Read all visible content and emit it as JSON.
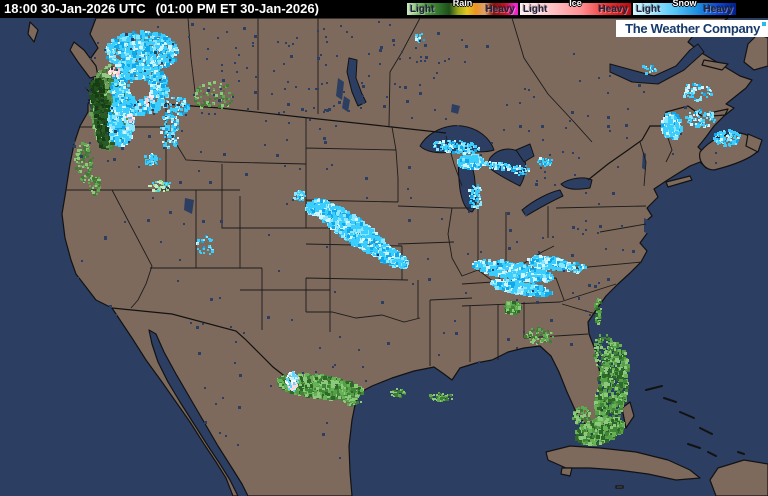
{
  "header": {
    "timestamp_utc": "18:00 30-Jan-2026 UTC",
    "timestamp_local": "(01:00 PM ET 30-Jan-2026)"
  },
  "legend": {
    "groups": [
      {
        "name": "Rain",
        "light": "Light",
        "heavy": "Heavy",
        "stops": [
          "#cfe8c4 0%",
          "#8fc97e 8%",
          "#4f9a42 18%",
          "#2f6f29 30%",
          "#1d4f1a 38%",
          "#9aa71c 46%",
          "#e3c81e 54%",
          "#ee9221 62%",
          "#d9a26b 70%",
          "#8c1010 78%",
          "#c41425 88%",
          "#ee28c8 97%",
          "#f01fd4 100%"
        ]
      },
      {
        "name": "Ice",
        "light": "Light",
        "heavy": "Heavy",
        "stops": [
          "#ffeef0 0%",
          "#ffc9cc 25%",
          "#ff8f93 55%",
          "#e83030 80%",
          "#b80b10 100%"
        ]
      },
      {
        "name": "Snow",
        "light": "Light",
        "heavy": "Heavy",
        "stops": [
          "#d8f6ff 0%",
          "#9fe7ff 18%",
          "#55c8f7 40%",
          "#1e8fe0 62%",
          "#1048d0 82%",
          "#001f8f 100%"
        ]
      }
    ]
  },
  "branding": {
    "name": "The Weather Company",
    "text_color": "#163a6b",
    "trademark_color": "#2bb9e8",
    "background": "#ffffff"
  },
  "map": {
    "colors": {
      "ocean": "#2d3e63",
      "land": "#7d6a5c",
      "coastline": "#121212",
      "state_border": "#1c1c1c",
      "bar_background": "#000000"
    },
    "palettes": {
      "snow": [
        "#3bcdfb",
        "#3bcdfb",
        "#3bcdfb",
        "#8ae6ff",
        "#12a7e8",
        "#d2f4ff"
      ],
      "rainNW": [
        "#47853c",
        "#3a7231",
        "#578f47",
        "#2a5a25",
        "#96c985",
        "#6ca05c"
      ],
      "rainDark": [
        "#1f4d1b",
        "#163d13",
        "#2a5a25"
      ],
      "rain": [
        "#55a047",
        "#67b156",
        "#418539",
        "#8cc97b",
        "#2e6828"
      ],
      "rainSparse": [
        "#5fa852",
        "#8cc97b",
        "#3f7d37"
      ],
      "ice": [
        "#ffd2d2",
        "#ffecec",
        "#f2b8c6"
      ],
      "iceMix": [
        "#ffffff",
        "#c8f1ff",
        "#5fd7ff",
        "#ffd9db"
      ],
      "mixGreen": [
        "#3bcdfb",
        "#8fe08b",
        "#c7ecc2"
      ],
      "noise": [
        "#2d3e63"
      ]
    },
    "radar_cells": [
      [
        110,
        107,
        19,
        42,
        0,
        760,
        3,
        "rainNW",
        0
      ],
      [
        103,
        122,
        8,
        26,
        0,
        200,
        3,
        "rainDark",
        0
      ],
      [
        97,
        92,
        7,
        14,
        0,
        90,
        3,
        "rainDark",
        0
      ],
      [
        84,
        163,
        9,
        20,
        0,
        90,
        2,
        "rainSparse",
        0
      ],
      [
        94,
        185,
        7,
        10,
        0,
        40,
        2,
        "rainSparse",
        0
      ],
      [
        214,
        96,
        20,
        15,
        0,
        70,
        2,
        "rainSparse",
        0
      ],
      [
        142,
        52,
        36,
        20,
        0,
        620,
        3,
        "snow",
        0
      ],
      [
        140,
        89,
        29,
        26,
        0,
        560,
        3,
        "snow",
        0.4
      ],
      [
        121,
        122,
        13,
        24,
        0,
        300,
        3,
        "snow",
        0
      ],
      [
        170,
        130,
        9,
        20,
        0,
        110,
        2,
        "snow",
        0
      ],
      [
        177,
        106,
        13,
        9,
        0,
        70,
        2,
        "snow",
        0
      ],
      [
        152,
        160,
        8,
        6,
        0,
        40,
        2,
        "snow",
        0
      ],
      [
        114,
        72,
        6,
        6,
        0,
        22,
        2,
        "ice",
        0
      ],
      [
        149,
        100,
        5,
        5,
        0,
        16,
        2,
        "ice",
        0
      ],
      [
        130,
        118,
        4,
        4,
        0,
        12,
        2,
        "ice",
        0
      ],
      [
        160,
        186,
        11,
        6,
        0,
        40,
        2,
        "mixGreen",
        0
      ],
      [
        205,
        246,
        9,
        11,
        0,
        28,
        2,
        "snow",
        0
      ],
      [
        352,
        229,
        47,
        12,
        35,
        820,
        3,
        "snow",
        0
      ],
      [
        389,
        256,
        21,
        8,
        25,
        230,
        3,
        "snow",
        0
      ],
      [
        317,
        207,
        11,
        7,
        -15,
        150,
        3,
        "snow",
        0
      ],
      [
        300,
        196,
        6,
        5,
        0,
        40,
        2,
        "snow",
        0
      ],
      [
        456,
        147,
        25,
        6,
        5,
        150,
        2,
        "snow",
        0
      ],
      [
        470,
        162,
        13,
        7,
        0,
        160,
        3,
        "snow",
        0
      ],
      [
        497,
        166,
        15,
        4,
        8,
        80,
        2,
        "snow",
        0
      ],
      [
        476,
        196,
        7,
        13,
        0,
        60,
        2,
        "snow",
        0
      ],
      [
        521,
        170,
        9,
        5,
        0,
        45,
        2,
        "snow",
        0
      ],
      [
        545,
        162,
        8,
        4,
        0,
        35,
        2,
        "snow",
        0
      ],
      [
        420,
        38,
        6,
        4,
        0,
        15,
        2,
        "snow",
        0
      ],
      [
        513,
        271,
        41,
        8,
        10,
        560,
        3,
        "snow",
        0
      ],
      [
        521,
        288,
        31,
        6,
        10,
        270,
        3,
        "snow",
        0
      ],
      [
        549,
        263,
        21,
        6,
        8,
        190,
        3,
        "snow",
        0
      ],
      [
        576,
        268,
        10,
        5,
        0,
        60,
        2,
        "snow",
        0
      ],
      [
        672,
        126,
        10,
        13,
        0,
        170,
        3,
        "snow",
        0
      ],
      [
        701,
        119,
        15,
        9,
        0,
        80,
        2,
        "snow",
        0
      ],
      [
        727,
        138,
        13,
        8,
        0,
        100,
        2,
        "snow",
        0
      ],
      [
        697,
        92,
        15,
        9,
        0,
        60,
        2,
        "snow",
        0
      ],
      [
        648,
        70,
        8,
        5,
        0,
        20,
        2,
        "snow",
        0
      ],
      [
        320,
        387,
        43,
        11,
        7,
        740,
        3,
        "rain",
        0
      ],
      [
        292,
        382,
        6,
        10,
        0,
        90,
        2,
        "iceMix",
        0
      ],
      [
        352,
        402,
        9,
        4,
        0,
        35,
        2,
        "rainSparse",
        0
      ],
      [
        398,
        393,
        8,
        4,
        0,
        40,
        2,
        "rainSparse",
        0
      ],
      [
        441,
        397,
        12,
        4,
        0,
        50,
        2,
        "rainSparse",
        0
      ],
      [
        612,
        388,
        15,
        46,
        8,
        520,
        3,
        "rain",
        0
      ],
      [
        604,
        352,
        11,
        18,
        0,
        110,
        2,
        "rainSparse",
        0
      ],
      [
        600,
        431,
        25,
        12,
        -15,
        320,
        3,
        "rain",
        0
      ],
      [
        582,
        416,
        9,
        9,
        0,
        80,
        2,
        "rainSparse",
        0
      ],
      [
        540,
        336,
        15,
        8,
        0,
        70,
        2,
        "rainSparse",
        0
      ],
      [
        513,
        308,
        8,
        6,
        0,
        120,
        3,
        "rain",
        0
      ],
      [
        598,
        311,
        3,
        13,
        0,
        55,
        2,
        "rain",
        0
      ],
      [
        384,
        240,
        370,
        225,
        0,
        240,
        2,
        "noise",
        0
      ],
      [
        250,
        70,
        220,
        50,
        0,
        130,
        2,
        "noise",
        0
      ],
      [
        610,
        210,
        150,
        120,
        0,
        60,
        2,
        "noise",
        0
      ]
    ]
  }
}
